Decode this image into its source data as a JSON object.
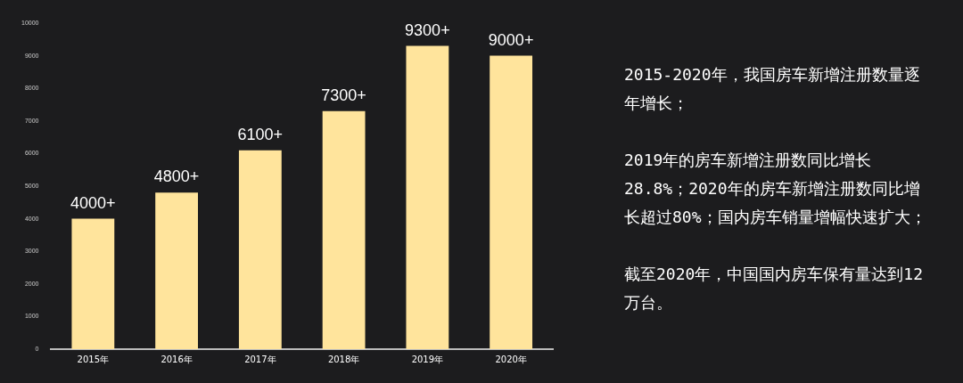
{
  "chart_data": {
    "type": "bar",
    "categories": [
      "2015年",
      "2016年",
      "2017年",
      "2018年",
      "2019年",
      "2020年"
    ],
    "values": [
      4000,
      4800,
      6100,
      7300,
      9300,
      9000
    ],
    "value_labels": [
      "4000+",
      "4800+",
      "6100+",
      "7300+",
      "9300+",
      "9000+"
    ],
    "color": "#ffe49c",
    "ylim": [
      0,
      10000
    ],
    "yticks": [
      0,
      1000,
      2000,
      3000,
      4000,
      5000,
      6000,
      7000,
      8000,
      9000,
      10000
    ],
    "grid": false,
    "legend": false,
    "annotations": [
      "2015-2020年，我国房车新增注册数量逐年增长；",
      "2019年的房车新增注册数同比增长28.8%；2020年的房车新增注册数同比增长超过80%；国内房车销量增幅快速扩大；",
      "截至2020年，中国国内房车保有量达到12万台。"
    ]
  }
}
